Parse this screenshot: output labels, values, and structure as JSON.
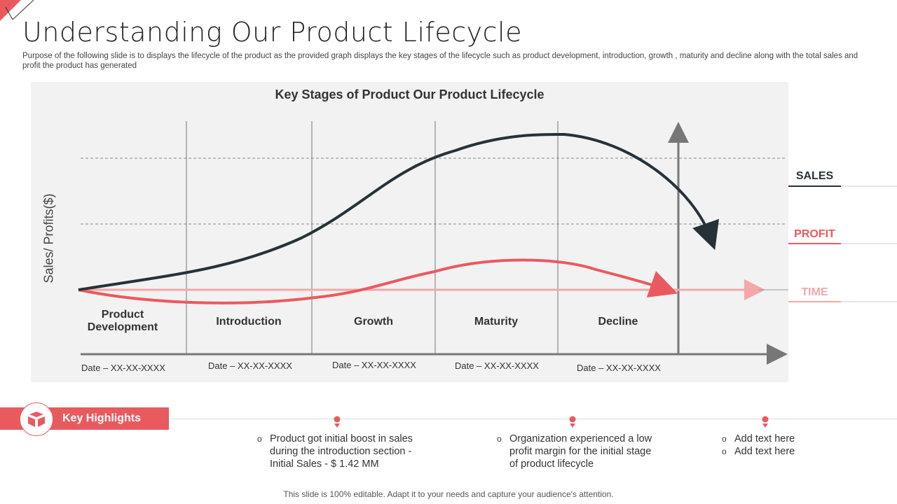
{
  "title": "Understanding Our Product Lifecycle",
  "subtitle": "Purpose of the following slide is to displays the lifecycle of the product as the provided graph displays the key stages of the lifecycle such as product development, introduction, growth , maturity and decline along with the total sales and profit the product has generated",
  "chart": {
    "title": "Key Stages of Product Our Product Lifecycle",
    "ylabel": "Sales/ Profits($)",
    "stages": [
      {
        "label": "Product Development",
        "date": "Date – XX-XX-XXXX"
      },
      {
        "label": "Introduction",
        "date": "Date – XX-XX-XXXX"
      },
      {
        "label": "Growth",
        "date": "Date – XX-XX-XXXX"
      },
      {
        "label": "Maturity",
        "date": "Date – XX-XX-XXXX"
      },
      {
        "label": "Decline",
        "date": "Date – XX-XX-XXXX"
      }
    ],
    "legend": {
      "sales": "SALES",
      "profit": "PROFIT",
      "time": "TIME"
    },
    "colors": {
      "sales": "#263238",
      "profit": "#e95a5f",
      "time": "#f4a7a9"
    }
  },
  "highlights": {
    "label": "Key Highlights",
    "items": [
      {
        "bullets": [
          "Product got initial boost in sales during the introduction section - Initial Sales - $ 1.42 MM"
        ]
      },
      {
        "bullets": [
          "Organization experienced a low profit margin for the initial stage of product lifecycle"
        ]
      },
      {
        "bullets": [
          "Add text here",
          "Add text here"
        ]
      }
    ]
  },
  "footer": "This slide is 100% editable. Adapt it to your needs and capture your audience's attention."
}
